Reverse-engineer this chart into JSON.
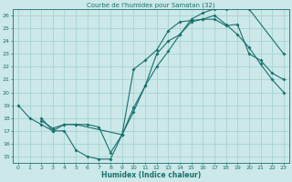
{
  "title": "Courbe de l'humidex pour Samatan (32)",
  "xlabel": "Humidex (Indice chaleur)",
  "bg_color": "#cce8e8",
  "grid_color": "#9fcfcf",
  "line_color": "#1a7070",
  "xlim": [
    -0.5,
    23.5
  ],
  "ylim": [
    14.5,
    26.5
  ],
  "xticks": [
    0,
    1,
    2,
    3,
    4,
    5,
    6,
    7,
    8,
    9,
    10,
    11,
    12,
    13,
    14,
    15,
    16,
    17,
    18,
    19,
    20,
    21,
    22,
    23
  ],
  "yticks": [
    15,
    16,
    17,
    18,
    19,
    20,
    21,
    22,
    23,
    24,
    25,
    26
  ],
  "line1_x": [
    0,
    1,
    2,
    3,
    4,
    5,
    6,
    7,
    8,
    9,
    10,
    11,
    12,
    13,
    14,
    15,
    16,
    17,
    18,
    19,
    20,
    21,
    22,
    23
  ],
  "line1_y": [
    19,
    18,
    17.5,
    17.0,
    17.0,
    15.5,
    15.0,
    14.8,
    14.8,
    16.7,
    18.5,
    20.5,
    23.0,
    24.0,
    24.5,
    25.5,
    25.7,
    25.7,
    25.2,
    25.3,
    23.0,
    22.5,
    21.5,
    21.0
  ],
  "line2_x": [
    2,
    3,
    4,
    5,
    6,
    7,
    8,
    9,
    10,
    11,
    12,
    13,
    14,
    15,
    16,
    17,
    18,
    19,
    20,
    21,
    22,
    23
  ],
  "line2_y": [
    17.8,
    17.2,
    17.5,
    17.5,
    17.5,
    17.3,
    15.3,
    16.7,
    21.8,
    22.5,
    23.3,
    24.8,
    25.5,
    25.6,
    25.7,
    26.0,
    25.3,
    24.5,
    23.5,
    22.2,
    21.0,
    20.0
  ],
  "line3_x": [
    2,
    3,
    4,
    5,
    9,
    10,
    11,
    12,
    13,
    14,
    15,
    16,
    17,
    18,
    19,
    20,
    23
  ],
  "line3_y": [
    18.0,
    17.0,
    17.5,
    17.5,
    16.7,
    18.8,
    20.5,
    22.0,
    23.2,
    24.5,
    25.7,
    26.2,
    26.5,
    26.5,
    26.7,
    26.5,
    23.0
  ]
}
